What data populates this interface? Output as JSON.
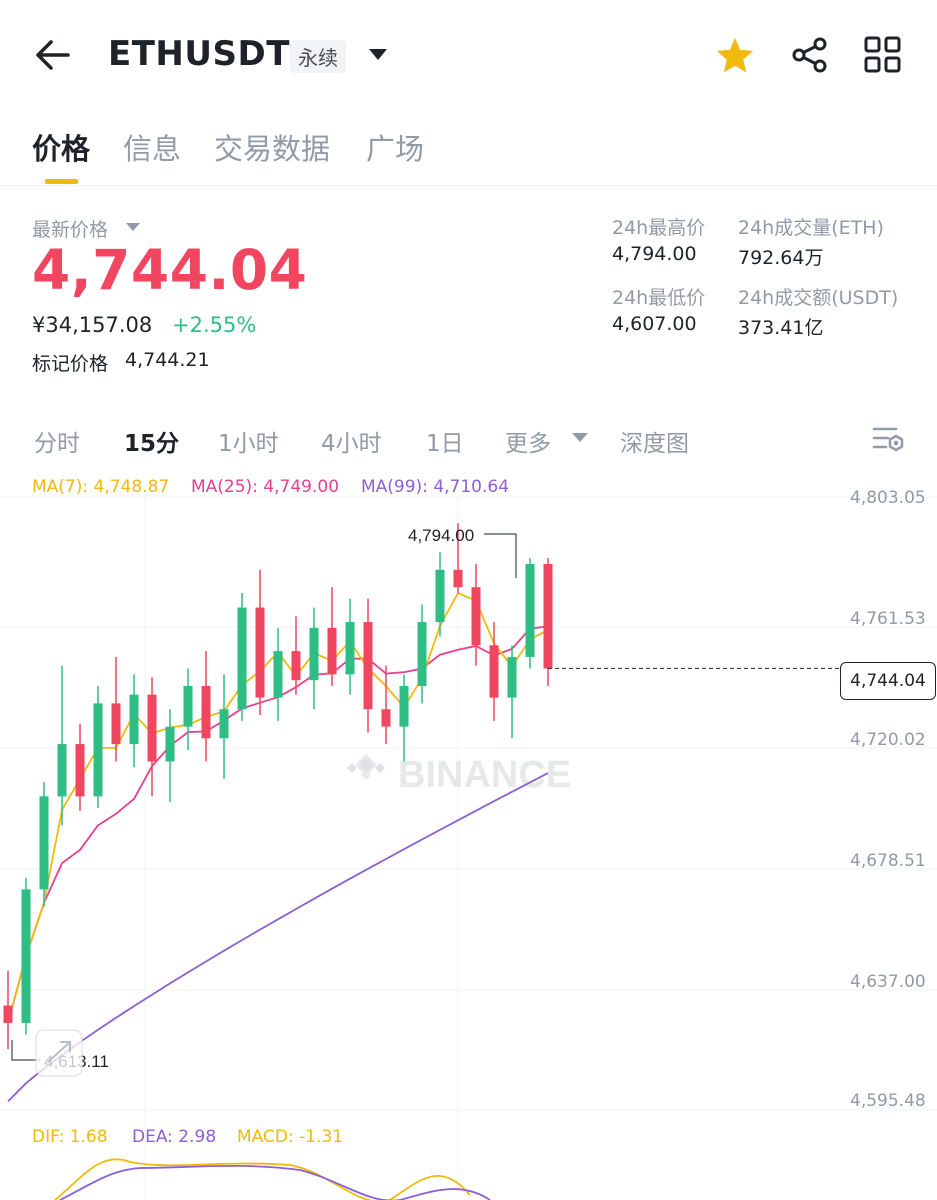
{
  "header": {
    "title": "ETHUSDT",
    "badge": "永续",
    "icons": [
      "back-arrow-icon",
      "chevron-down-icon",
      "star-icon",
      "share-icon",
      "grid-icon"
    ],
    "star_color": "#f0b90b"
  },
  "tabs": [
    "价格",
    "信息",
    "交易数据",
    "广场"
  ],
  "price_panel": {
    "latest_label": "最新价格",
    "latest_price": "4,744.04",
    "cny_price": "¥34,157.08",
    "change_pct": "+2.55%",
    "mark_label": "标记价格",
    "mark_price": "4,744.21",
    "high_label": "24h最高价",
    "high": "4,794.00",
    "low_label": "24h最低价",
    "low": "4,607.00",
    "vol_eth_label": "24h成交量(ETH)",
    "vol_eth": "792.64万",
    "vol_usdt_label": "24h成交额(USDT)",
    "vol_usdt": "373.41亿"
  },
  "intervals": {
    "items": [
      "分时",
      "15分",
      "1小时",
      "4小时",
      "1日",
      "更多",
      "深度图"
    ],
    "active": "15分"
  },
  "colors": {
    "up": "#2ebd85",
    "down": "#f0465f",
    "ma7": "#f0b90b",
    "ma25": "#e83e8c",
    "ma99": "#8d5fd3",
    "accent": "#f0b90b"
  },
  "chart_data": {
    "type": "candlestick",
    "ma_labels": {
      "ma7": "MA(7): 4,748.87",
      "ma25": "MA(25): 4,749.00",
      "ma99": "MA(99): 4,710.64"
    },
    "y_ticks": [
      "4,803.05",
      "4,761.53",
      "4,720.02",
      "4,678.51",
      "4,637.00",
      "4,595.48"
    ],
    "ylim": [
      4595.48,
      4803.05
    ],
    "current_price": "4,744.04",
    "max_marker": "4,794.00",
    "min_marker": "4,613.11",
    "watermark": "BINANCE",
    "candles": [
      [
        4628,
        4640,
        4613,
        4622
      ],
      [
        4622,
        4672,
        4618,
        4668
      ],
      [
        4668,
        4705,
        4662,
        4700
      ],
      [
        4700,
        4745,
        4690,
        4718
      ],
      [
        4718,
        4725,
        4695,
        4700
      ],
      [
        4700,
        4738,
        4696,
        4732
      ],
      [
        4732,
        4748,
        4712,
        4718
      ],
      [
        4718,
        4742,
        4710,
        4735
      ],
      [
        4735,
        4741,
        4700,
        4712
      ],
      [
        4712,
        4730,
        4698,
        4724
      ],
      [
        4724,
        4744,
        4716,
        4738
      ],
      [
        4738,
        4750,
        4712,
        4720
      ],
      [
        4720,
        4742,
        4706,
        4730
      ],
      [
        4730,
        4770,
        4726,
        4765
      ],
      [
        4765,
        4778,
        4728,
        4734
      ],
      [
        4734,
        4758,
        4726,
        4750
      ],
      [
        4750,
        4762,
        4735,
        4740
      ],
      [
        4740,
        4765,
        4730,
        4758
      ],
      [
        4758,
        4772,
        4738,
        4742
      ],
      [
        4742,
        4768,
        4735,
        4760
      ],
      [
        4760,
        4768,
        4722,
        4730
      ],
      [
        4730,
        4745,
        4718,
        4724
      ],
      [
        4724,
        4742,
        4712,
        4738
      ],
      [
        4738,
        4766,
        4732,
        4760
      ],
      [
        4760,
        4784,
        4755,
        4778
      ],
      [
        4778,
        4794,
        4770,
        4772
      ],
      [
        4772,
        4780,
        4745,
        4752
      ],
      [
        4752,
        4760,
        4726,
        4734
      ],
      [
        4734,
        4752,
        4720,
        4748
      ],
      [
        4748,
        4782,
        4744,
        4780
      ],
      [
        4780,
        4782,
        4738,
        4744
      ]
    ],
    "macd_labels": {
      "dif": "DIF: 1.68",
      "dea": "DEA: 2.98",
      "macd": "MACD: -1.31"
    }
  }
}
